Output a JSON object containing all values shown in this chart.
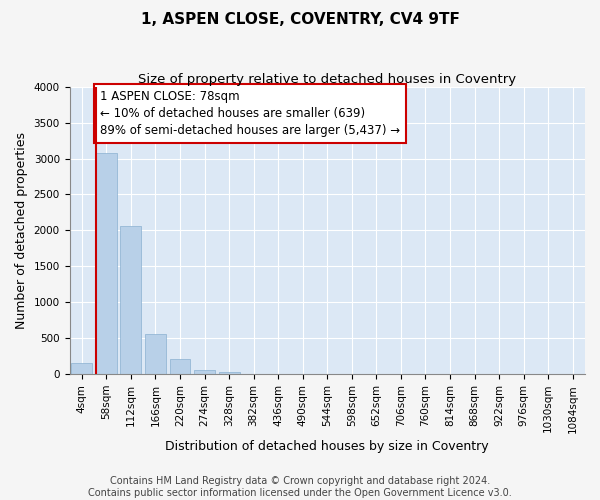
{
  "title": "1, ASPEN CLOSE, COVENTRY, CV4 9TF",
  "subtitle": "Size of property relative to detached houses in Coventry",
  "xlabel": "Distribution of detached houses by size in Coventry",
  "ylabel": "Number of detached properties",
  "footer_line1": "Contains HM Land Registry data © Crown copyright and database right 2024.",
  "footer_line2": "Contains public sector information licensed under the Open Government Licence v3.0.",
  "bar_color": "#b8d0e8",
  "bar_edge_color": "#8ab0d0",
  "bg_color": "#dce8f5",
  "grid_color": "#ffffff",
  "fig_bg_color": "#f5f5f5",
  "annotation_box_color": "#cc0000",
  "annotation_line_color": "#cc0000",
  "categories": [
    "4sqm",
    "58sqm",
    "112sqm",
    "166sqm",
    "220sqm",
    "274sqm",
    "328sqm",
    "382sqm",
    "436sqm",
    "490sqm",
    "544sqm",
    "598sqm",
    "652sqm",
    "706sqm",
    "760sqm",
    "814sqm",
    "868sqm",
    "922sqm",
    "976sqm",
    "1030sqm",
    "1084sqm"
  ],
  "values": [
    150,
    3080,
    2060,
    560,
    215,
    60,
    30,
    0,
    0,
    0,
    0,
    0,
    0,
    0,
    0,
    0,
    0,
    0,
    0,
    0,
    0
  ],
  "ylim": [
    0,
    4000
  ],
  "yticks": [
    0,
    500,
    1000,
    1500,
    2000,
    2500,
    3000,
    3500,
    4000
  ],
  "annotation_text_line1": "1 ASPEN CLOSE: 78sqm",
  "annotation_text_line2": "← 10% of detached houses are smaller (639)",
  "annotation_text_line3": "89% of semi-detached houses are larger (5,437) →",
  "title_fontsize": 11,
  "subtitle_fontsize": 9.5,
  "axis_label_fontsize": 9,
  "tick_fontsize": 7.5,
  "annotation_fontsize": 8.5,
  "footer_fontsize": 7
}
